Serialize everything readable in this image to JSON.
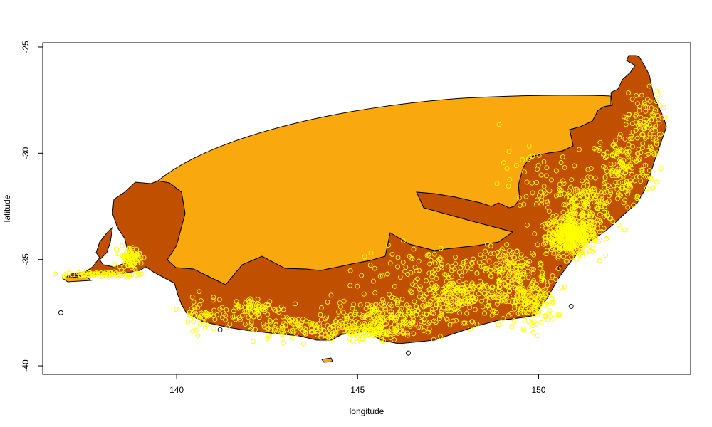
{
  "chart_data": {
    "type": "scatter",
    "title": "",
    "xlabel": "longitude",
    "ylabel": "latitude",
    "xlim": [
      136.3,
      154.2
    ],
    "ylim": [
      -40.4,
      -24.8
    ],
    "x_ticks": [
      140,
      145,
      150
    ],
    "x_tick_labels": [
      "140",
      "145",
      "150"
    ],
    "y_ticks": [
      -25,
      -30,
      -35,
      -40
    ],
    "y_tick_labels": [
      "-25",
      "-30",
      "-35",
      "-40"
    ],
    "grid": false,
    "legend": "none",
    "colors": {
      "land": "#c05000",
      "range_polygon": "#f9a80e",
      "points": "#ffff00",
      "outliers": "#000000",
      "outline": "#000000"
    },
    "layers": [
      {
        "name": "land",
        "description_color": "dark orange"
      },
      {
        "name": "range_polygon",
        "description_color": "orange"
      },
      {
        "name": "occurrence_points",
        "description_color": "yellow circles"
      }
    ],
    "outlier_points": [
      {
        "x": 136.8,
        "y": -37.5
      },
      {
        "x": 141.2,
        "y": -38.3
      },
      {
        "x": 146.4,
        "y": -39.4
      },
      {
        "x": 150.9,
        "y": -37.2
      },
      {
        "x": 150.6,
        "y": -35.4
      }
    ]
  }
}
